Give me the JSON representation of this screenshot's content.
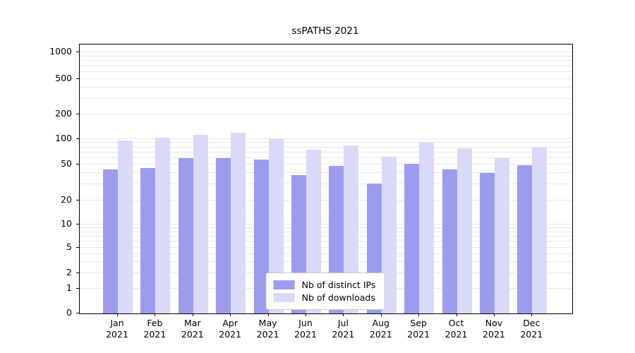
{
  "chart_data": {
    "type": "bar",
    "title": "ssPATHS 2021",
    "xlabel": "",
    "ylabel": "",
    "y_scale": "log",
    "grid": "on",
    "legend_position": "lower center",
    "year": "2021",
    "categories": [
      "Jan",
      "Feb",
      "Mar",
      "Apr",
      "May",
      "Jun",
      "Jul",
      "Aug",
      "Sep",
      "Oct",
      "Nov",
      "Dec"
    ],
    "y_ticks": [
      0,
      1,
      2,
      5,
      10,
      20,
      50,
      100,
      200,
      500,
      1000
    ],
    "series": [
      {
        "name": "Nb of distinct IPs",
        "color": "#9c9cee",
        "values": [
          44,
          46,
          60,
          59,
          57,
          38,
          48,
          31,
          51,
          44,
          40,
          49
        ]
      },
      {
        "name": "Nb of downloads",
        "color": "#d9d9f8",
        "values": [
          97,
          105,
          112,
          120,
          100,
          75,
          84,
          62,
          90,
          78,
          60,
          79
        ]
      }
    ]
  }
}
